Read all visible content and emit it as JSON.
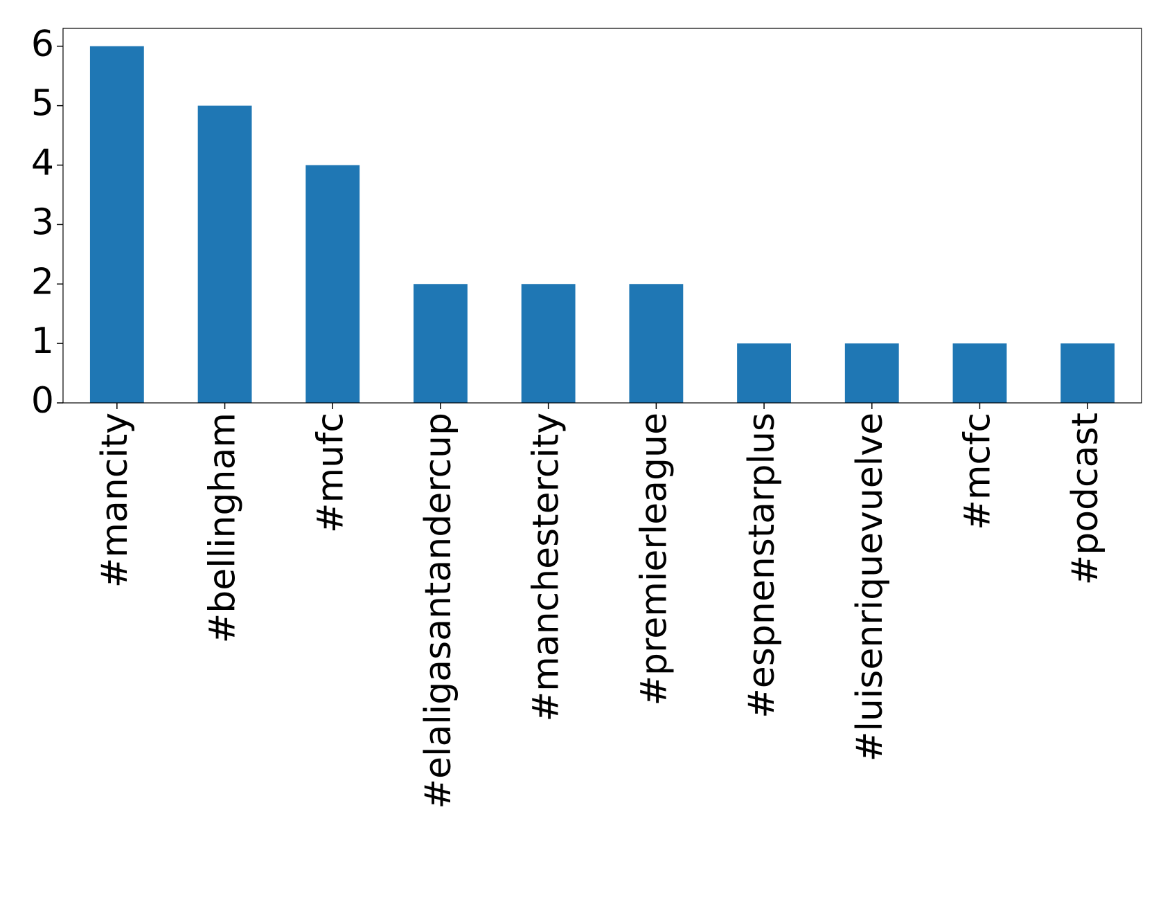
{
  "chart_data": {
    "type": "bar",
    "categories": [
      "#mancity",
      "#bellingham",
      "#mufc",
      "#elaligasantandercup",
      "#manchestercity",
      "#premierleague",
      "#espnenstarplus",
      "#luisenriquevuelve",
      "#mcfc",
      "#podcast"
    ],
    "values": [
      6,
      5,
      4,
      2,
      2,
      2,
      1,
      1,
      1,
      1
    ],
    "color": "#1f77b4",
    "ylim": [
      0,
      6.3
    ],
    "yticks": [
      0,
      1,
      2,
      3,
      4,
      5,
      6
    ],
    "grid": false
  }
}
